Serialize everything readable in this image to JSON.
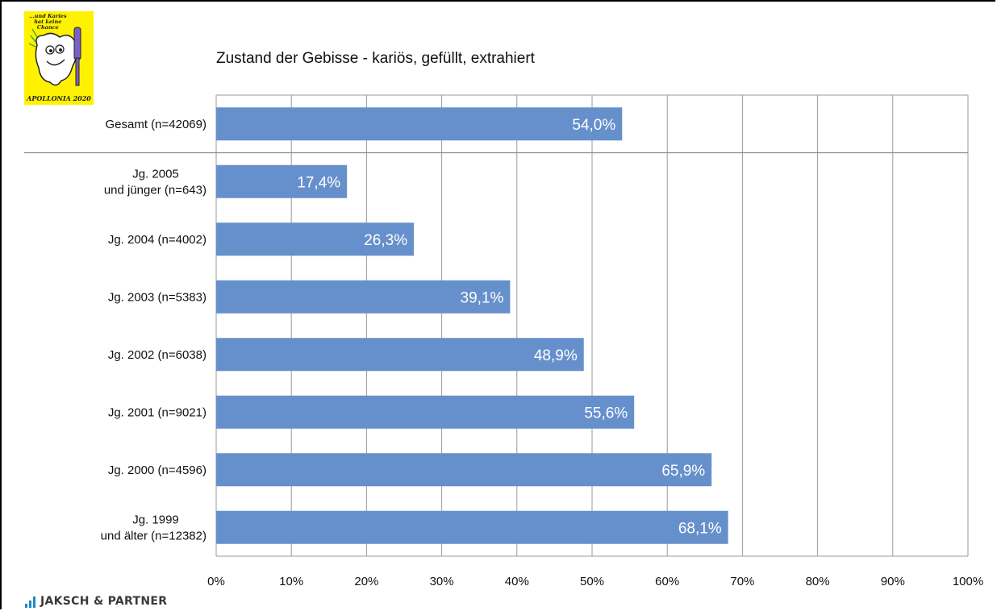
{
  "logo": {
    "top_line1": "...und Karies",
    "top_line2": "hat keine",
    "top_line3": "Chance",
    "bottom": "APOLLONIA 2020"
  },
  "brand": {
    "text": "JAKSCH & PARTNER",
    "color": "#1e88c8"
  },
  "chart_data": {
    "type": "bar",
    "orientation": "horizontal",
    "title": "Zustand der Gebisse - kariös, gefüllt, extrahiert",
    "categories": [
      [
        "Gesamt (n=42069)"
      ],
      [
        "Jg. 2005",
        "und jünger (n=643)"
      ],
      [
        "Jg. 2004 (n=4002)"
      ],
      [
        "Jg. 2003 (n=5383)"
      ],
      [
        "Jg. 2002 (n=6038)"
      ],
      [
        "Jg. 2001 (n=9021)"
      ],
      [
        "Jg. 2000 (n=4596)"
      ],
      [
        "Jg. 1999",
        "und älter (n=12382)"
      ]
    ],
    "values": [
      54.0,
      17.4,
      26.3,
      39.1,
      48.9,
      55.6,
      65.9,
      68.1
    ],
    "data_labels": [
      "54,0%",
      "17,4%",
      "26,3%",
      "39,1%",
      "48,9%",
      "55,6%",
      "65,9%",
      "68,1%"
    ],
    "xlim": [
      0,
      100
    ],
    "xticks": [
      "0%",
      "10%",
      "20%",
      "30%",
      "40%",
      "50%",
      "60%",
      "70%",
      "80%",
      "90%",
      "100%"
    ],
    "grid": true,
    "bar_color": "#6690cc",
    "separator_after_index": 0
  }
}
